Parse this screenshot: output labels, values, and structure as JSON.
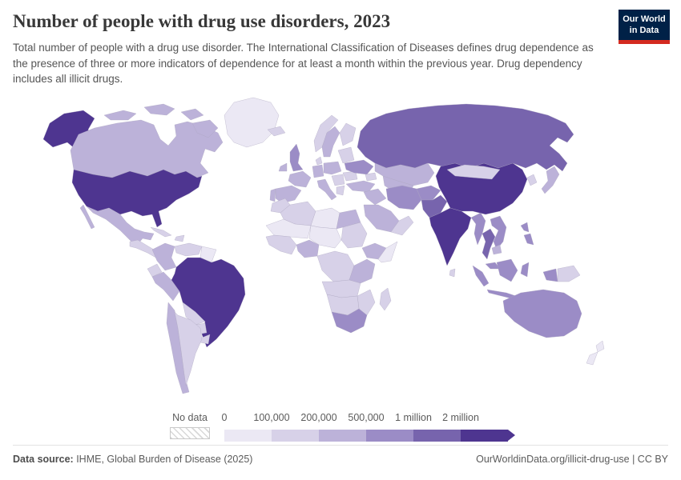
{
  "header": {
    "title": "Number of people with drug use disorders, 2023",
    "subtitle": "Total number of people with a drug use disorder. The International Classification of Diseases defines drug dependence as the presence of three or more indicators of dependence for at least a month within the previous year. Drug dependency includes all illicit drugs.",
    "logo": {
      "line1": "Our World",
      "line2": "in Data",
      "bg_color": "#002147",
      "accent_color": "#d42a20"
    }
  },
  "legend": {
    "no_data_label": "No data"
  },
  "footer": {
    "source_label": "Data source:",
    "source_text": " IHME, Global Burden of Disease (2025)",
    "credit_text": "OurWorldinData.org/illicit-drug-use | CC BY"
  },
  "chart_data": {
    "type": "choropleth",
    "title": "Number of people with drug use disorders, 2023",
    "year": 2023,
    "unit": "people with drug use disorders",
    "legend_bins": [
      {
        "label": "0",
        "min": 0,
        "color": "#ebe8f4"
      },
      {
        "label": "100,000",
        "min": 100000,
        "color": "#d7d1e8"
      },
      {
        "label": "200,000",
        "min": 200000,
        "color": "#bcb2d9"
      },
      {
        "label": "500,000",
        "min": 500000,
        "color": "#9b8cc6"
      },
      {
        "label": "1 million",
        "min": 1000000,
        "color": "#7764ad"
      },
      {
        "label": "2 million",
        "min": 2000000,
        "color": "#4e3590"
      }
    ],
    "no_data_color": "#ffffff",
    "no_data_pattern": "diagonal-hatch",
    "countries": {
      "alaska": 5,
      "canada": 2,
      "greenland": 0,
      "united-states": 5,
      "mexico": 2,
      "central-america": 1,
      "cuba": 1,
      "hispaniola": 1,
      "colombia": 2,
      "venezuela": 1,
      "guyanas": 0,
      "ecuador": 1,
      "peru": 2,
      "brazil": 5,
      "bolivia": 1,
      "paraguay": 1,
      "uruguay": 1,
      "chile": 2,
      "argentina": 1,
      "iceland": 1,
      "ireland": 2,
      "united-kingdom": 3,
      "norway": 1,
      "sweden": 2,
      "finland": 1,
      "denmark": 1,
      "portugal": 2,
      "spain": 2,
      "france": 2,
      "germany": 2,
      "italy": 2,
      "central-europe": 2,
      "balkans": 1,
      "greece": 1,
      "romania": 1,
      "belarus-baltics": 1,
      "ukraine": 3,
      "russia": 4,
      "kazakhstan": 2,
      "central-asia": 2,
      "caucasus": 1,
      "turkey": 2,
      "iraq-syria": 2,
      "iran": 3,
      "saudi-arabia": 2,
      "yemen-oman": 1,
      "afghanistan": 3,
      "pakistan": 4,
      "india": 5,
      "sri-lanka": 1,
      "china": 5,
      "mongolia": 1,
      "korea": 1,
      "japan": 2,
      "myanmar": 3,
      "thailand": 4,
      "vietnam-laos": 3,
      "cambodia": 2,
      "malaysia": 3,
      "philippines": 3,
      "indonesia": 3,
      "papua-new-guinea": 1,
      "morocco": 1,
      "algeria": 1,
      "libya": 0,
      "egypt": 2,
      "mauritania-mali": 0,
      "niger-chad": 0,
      "sudan": 1,
      "west-africa-coast": 1,
      "nigeria": 2,
      "ethiopia": 2,
      "somalia": 0,
      "drc-central": 1,
      "east-africa": 2,
      "angola-zambia": 1,
      "mozambique-zimbabwe": 1,
      "namibia-botswana": 1,
      "south-africa": 3,
      "madagascar": 1,
      "australia": 3,
      "new-zealand": 0
    }
  }
}
